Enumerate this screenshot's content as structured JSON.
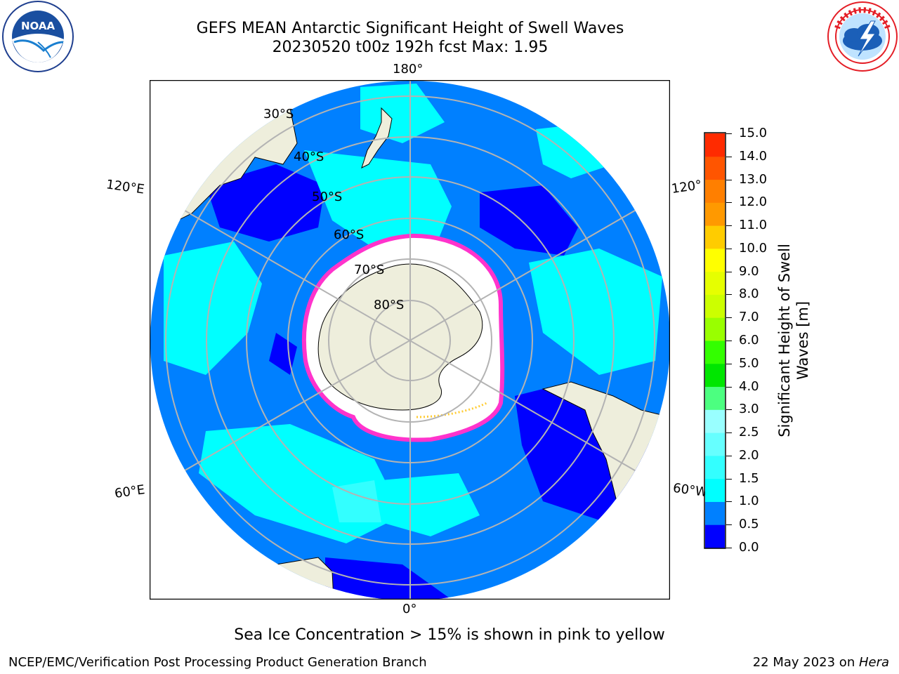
{
  "header": {
    "title": "GEFS MEAN Antarctic Significant Height of Swell Waves",
    "subtitle": "20230520 t00z 192h fcst   Max: 1.95"
  },
  "logos": {
    "left": "NOAA",
    "left_ring": "NATIONAL OCEANIC AND ATMOSPHERIC ADMINISTRATION · U.S. DEPARTMENT OF COMMERCE",
    "right_ring": "NATIONAL WEATHER SERVICE"
  },
  "map": {
    "lon_labels": {
      "top": "180°",
      "bottom": "0°",
      "left_upper": "120°E",
      "left_lower": "60°E",
      "right_upper": "120°",
      "right_lower": "60°W"
    },
    "lat_labels": [
      "30°S",
      "40°S",
      "50°S",
      "60°S",
      "70°S",
      "80°S"
    ],
    "colors": {
      "ocean_base": "#0080ff",
      "swell_low": "#0000ff",
      "swell_mid": "#00ffff",
      "swell_light": "#33ffff",
      "land": "#eeeedc",
      "ice_edge": "#ff33cc",
      "ice_tip": "#ffcc33",
      "grid": "#b3b3b3"
    }
  },
  "colorbar": {
    "label": "Significant Height of Swell Waves [m]",
    "label_line1": "Significant Height of Swell",
    "label_line2": "Waves [m]",
    "ticks": [
      "0.0",
      "0.5",
      "1.0",
      "1.5",
      "2.0",
      "2.5",
      "3.0",
      "4.0",
      "5.0",
      "6.0",
      "7.0",
      "8.0",
      "9.0",
      "10.0",
      "11.0",
      "12.0",
      "13.0",
      "14.0",
      "15.0"
    ],
    "bins": [
      "#0000ff",
      "#0080ff",
      "#00ffff",
      "#33ffff",
      "#66ffff",
      "#99ffff",
      "#4cff80",
      "#00e600",
      "#33ff00",
      "#99ff00",
      "#ccff00",
      "#e6ff00",
      "#ffff00",
      "#ffcc00",
      "#ff9900",
      "#ff7f00",
      "#ff5500",
      "#ff2b00",
      "#ff0000"
    ]
  },
  "note": "Sea Ice Concentration > 15% is shown in pink to yellow",
  "footer": {
    "left": "NCEP/EMC/Verification Post Processing Product Generation Branch",
    "right_prefix": "22 May 2023 on ",
    "right_host": "Hera"
  }
}
